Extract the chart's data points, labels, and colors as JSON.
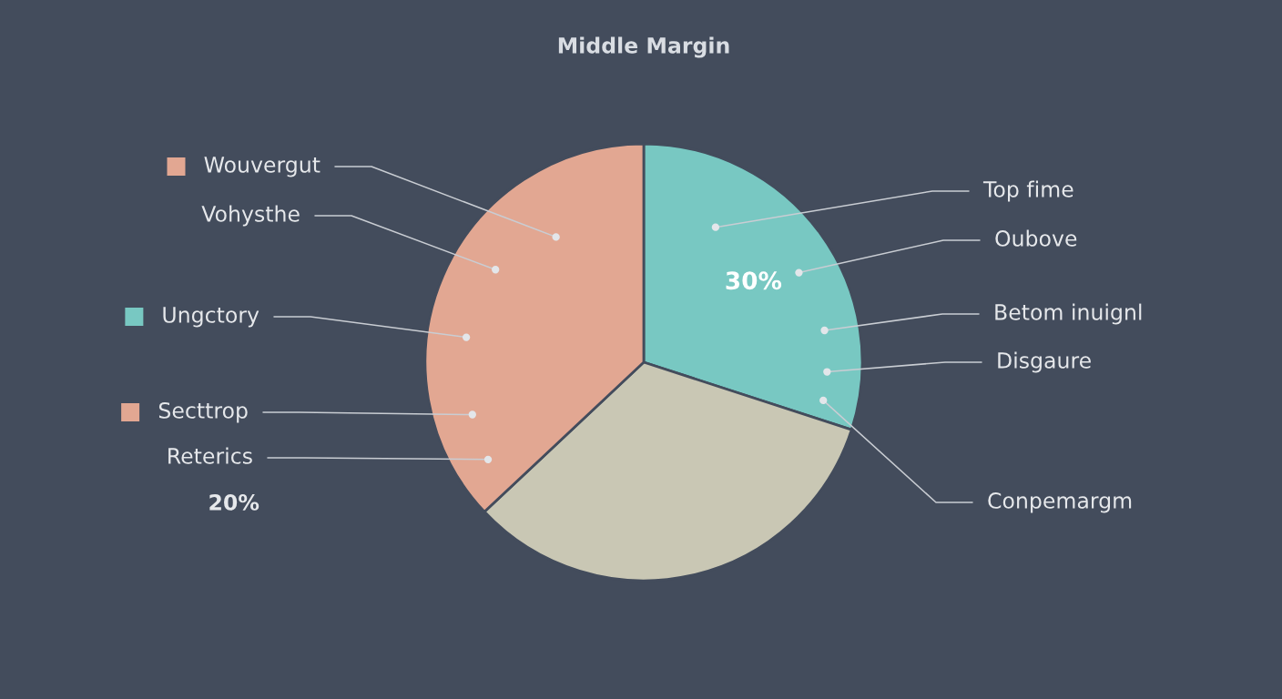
{
  "chart_data": {
    "type": "pie",
    "title": "Middle Margin",
    "categories": [
      null,
      null,
      null
    ],
    "values": [
      30,
      33,
      37
    ],
    "colors": [
      "#78c8c2",
      "#c9c7b4",
      "#e2a792"
    ],
    "value_labels": [
      "30%",
      null,
      null
    ],
    "annotations": [
      "Wouvergut",
      "Vohysthe",
      "Ungctory",
      "Secttrop",
      "Reterics",
      "20%",
      "Top fime",
      "Oubove",
      "Betom inuignl",
      "Disgaure",
      "Conpemargm"
    ]
  }
}
